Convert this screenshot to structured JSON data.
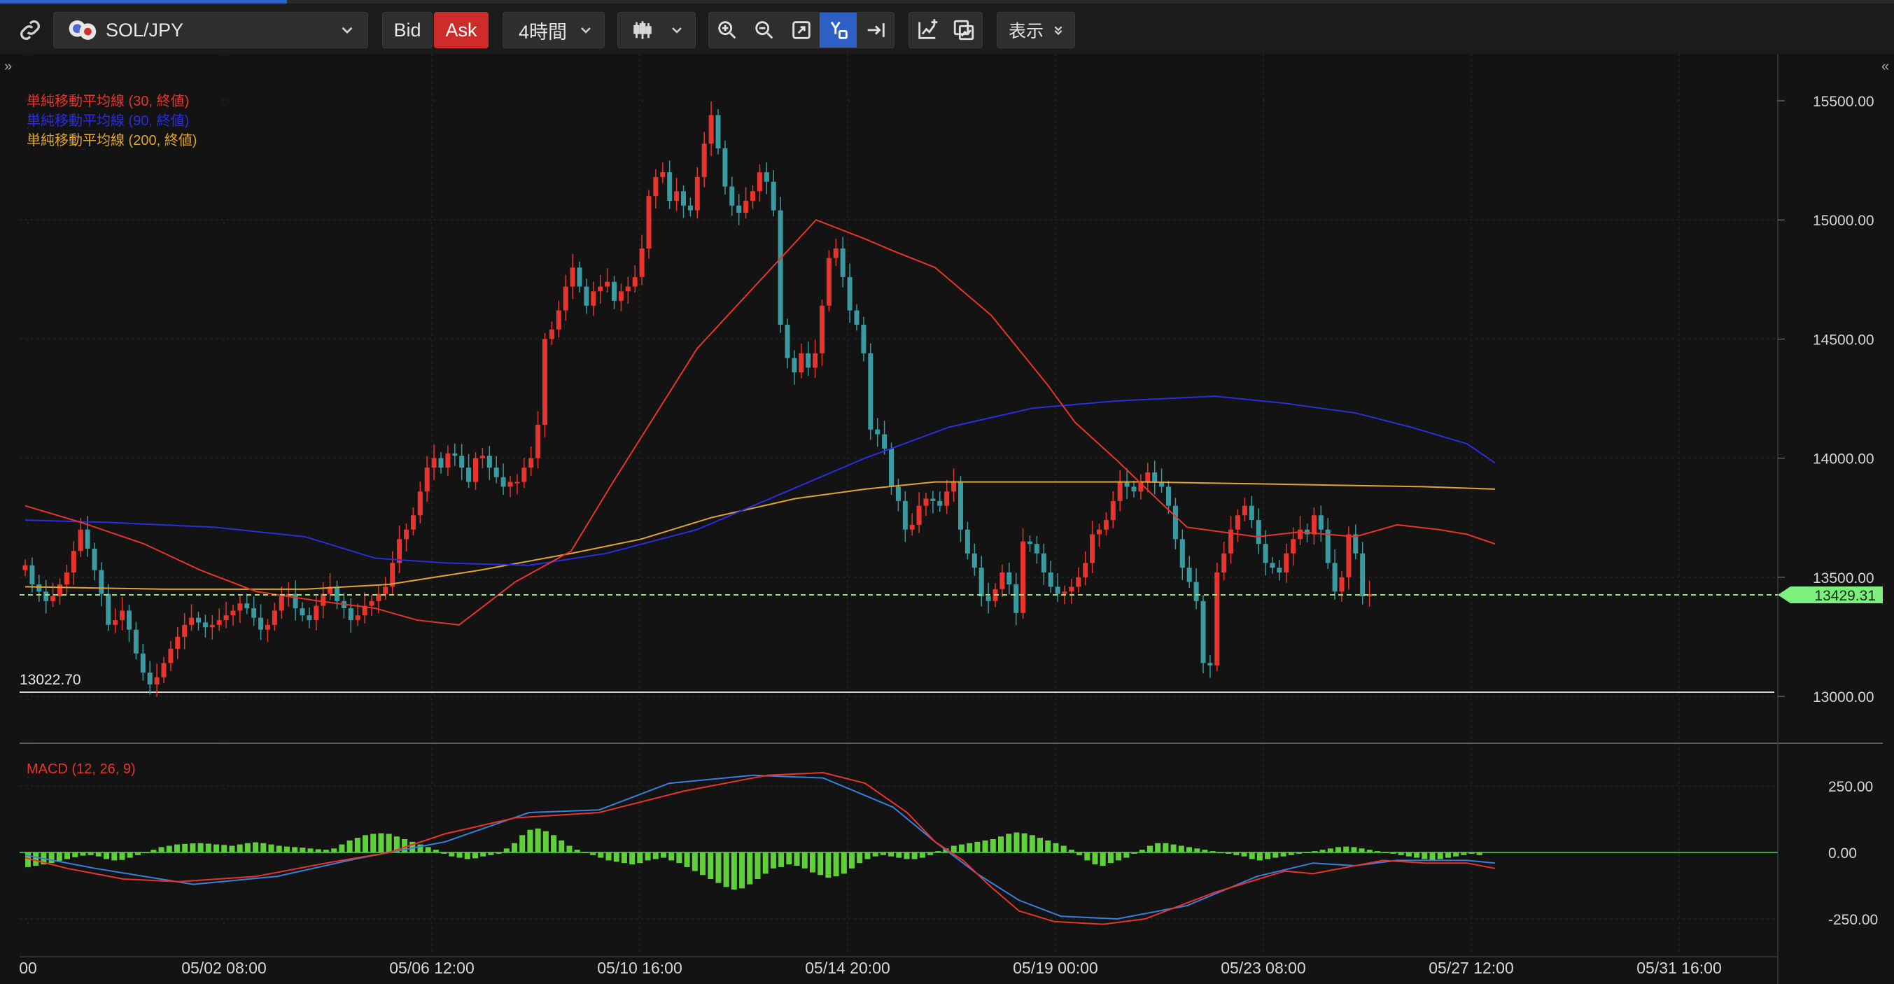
{
  "toolbar": {
    "symbol": "SOL/JPY",
    "bid_label": "Bid",
    "ask_label": "Ask",
    "timeframe": "4時間",
    "display_label": "表示"
  },
  "indicators": [
    {
      "label": "単純移動平均線 (30, 終値)",
      "color": "#e8342c"
    },
    {
      "label": "単純移動平均線 (90, 終値)",
      "color": "#2c2ce0"
    },
    {
      "label": "単純移動平均線 (200, 終値)",
      "color": "#e0a530"
    }
  ],
  "macd_label": "MACD (12, 26, 9)",
  "low_marker": "13022.70",
  "current_price": "13429.31",
  "colors": {
    "up": "#e8342c",
    "down": "#3a9aa0",
    "macd_hist": "#5fcf3a",
    "price_line": "#7cf07c"
  },
  "chart_data": {
    "type": "line",
    "price_axis": [
      {
        "v": 15500,
        "label": "15500.00"
      },
      {
        "v": 15000,
        "label": "15000.00"
      },
      {
        "v": 14500,
        "label": "14500.00"
      },
      {
        "v": 14000,
        "label": "14000.00"
      },
      {
        "v": 13500,
        "label": "13500.00"
      },
      {
        "v": 13000,
        "label": "13000.00"
      }
    ],
    "macd_axis": [
      {
        "v": 250,
        "label": "250.00"
      },
      {
        "v": 0,
        "label": "0.00"
      },
      {
        "v": -250,
        "label": "-250.00"
      }
    ],
    "x_ticks": [
      "00",
      "05/02 08:00",
      "05/06 12:00",
      "05/10 16:00",
      "05/14 20:00",
      "05/19 00:00",
      "05/23 08:00",
      "05/27 12:00",
      "05/31 16:00"
    ],
    "close": [
      13550,
      13470,
      13440,
      13400,
      13420,
      13470,
      13520,
      13610,
      13700,
      13620,
      13530,
      13430,
      13300,
      13320,
      13360,
      13280,
      13180,
      13100,
      13050,
      13080,
      13140,
      13200,
      13250,
      13300,
      13330,
      13310,
      13290,
      13300,
      13320,
      13340,
      13360,
      13390,
      13370,
      13330,
      13280,
      13300,
      13360,
      13420,
      13430,
      13370,
      13340,
      13320,
      13380,
      13430,
      13460,
      13400,
      13370,
      13320,
      13340,
      13380,
      13400,
      13430,
      13460,
      13560,
      13660,
      13700,
      13760,
      13860,
      13960,
      14000,
      13960,
      14020,
      14010,
      13960,
      13900,
      14000,
      14010,
      13960,
      13920,
      13880,
      13900,
      13900,
      13960,
      14000,
      14140,
      14500,
      14540,
      14620,
      14720,
      14800,
      14720,
      14640,
      14700,
      14720,
      14740,
      14660,
      14700,
      14720,
      14760,
      14880,
      15100,
      15180,
      15200,
      15080,
      15120,
      15060,
      15040,
      15180,
      15320,
      15440,
      15300,
      15140,
      15060,
      15030,
      15080,
      15120,
      15200,
      15160,
      15040,
      14560,
      14420,
      14360,
      14440,
      14380,
      14440,
      14640,
      14840,
      14880,
      14760,
      14620,
      14560,
      14440,
      14120,
      14100,
      14040,
      13880,
      13820,
      13700,
      13720,
      13800,
      13830,
      13820,
      13800,
      13860,
      13900,
      13700,
      13600,
      13540,
      13420,
      13400,
      13450,
      13520,
      13470,
      13350,
      13650,
      13640,
      13600,
      13520,
      13460,
      13430,
      13440,
      13460,
      13500,
      13560,
      13680,
      13700,
      13740,
      13820,
      13900,
      13880,
      13860,
      13900,
      13940,
      13900,
      13880,
      13800,
      13660,
      13540,
      13480,
      13400,
      13140,
      13130,
      13520,
      13600,
      13700,
      13760,
      13800,
      13740,
      13640,
      13560,
      13540,
      13520,
      13600,
      13660,
      13700,
      13680,
      13760,
      13700,
      13560,
      13440,
      13500,
      13680,
      13600,
      13420,
      13429
    ],
    "sma30": [
      [
        0,
        13800
      ],
      [
        80,
        13730
      ],
      [
        170,
        13640
      ],
      [
        250,
        13530
      ],
      [
        330,
        13440
      ],
      [
        420,
        13400
      ],
      [
        500,
        13370
      ],
      [
        560,
        13320
      ],
      [
        620,
        13300
      ],
      [
        700,
        13480
      ],
      [
        780,
        13610
      ],
      [
        840,
        13900
      ],
      [
        960,
        14460
      ],
      [
        1130,
        15000
      ],
      [
        1200,
        14920
      ],
      [
        1240,
        14870
      ],
      [
        1300,
        14800
      ],
      [
        1380,
        14600
      ],
      [
        1460,
        14310
      ],
      [
        1500,
        14150
      ],
      [
        1560,
        13990
      ],
      [
        1620,
        13820
      ],
      [
        1660,
        13710
      ],
      [
        1760,
        13670
      ],
      [
        1820,
        13690
      ],
      [
        1860,
        13680
      ],
      [
        1900,
        13670
      ],
      [
        1960,
        13720
      ],
      [
        2020,
        13700
      ],
      [
        2060,
        13680
      ],
      [
        2100,
        13640
      ]
    ],
    "sma90": [
      [
        0,
        13740
      ],
      [
        120,
        13730
      ],
      [
        270,
        13710
      ],
      [
        400,
        13670
      ],
      [
        500,
        13580
      ],
      [
        600,
        13560
      ],
      [
        720,
        13550
      ],
      [
        830,
        13600
      ],
      [
        960,
        13700
      ],
      [
        1080,
        13850
      ],
      [
        1200,
        14000
      ],
      [
        1320,
        14130
      ],
      [
        1440,
        14210
      ],
      [
        1560,
        14240
      ],
      [
        1700,
        14260
      ],
      [
        1800,
        14230
      ],
      [
        1900,
        14190
      ],
      [
        1980,
        14130
      ],
      [
        2060,
        14060
      ],
      [
        2100,
        13980
      ]
    ],
    "sma200": [
      [
        0,
        13460
      ],
      [
        200,
        13450
      ],
      [
        400,
        13450
      ],
      [
        520,
        13470
      ],
      [
        650,
        13530
      ],
      [
        780,
        13600
      ],
      [
        880,
        13660
      ],
      [
        980,
        13750
      ],
      [
        1100,
        13830
      ],
      [
        1200,
        13870
      ],
      [
        1300,
        13900
      ],
      [
        1450,
        13900
      ],
      [
        1600,
        13900
      ],
      [
        1800,
        13890
      ],
      [
        2000,
        13880
      ],
      [
        2100,
        13870
      ]
    ],
    "macd": [
      [
        0,
        -20
      ],
      [
        60,
        -60
      ],
      [
        140,
        -100
      ],
      [
        220,
        -110
      ],
      [
        330,
        -90
      ],
      [
        430,
        -40
      ],
      [
        520,
        0
      ],
      [
        600,
        70
      ],
      [
        700,
        130
      ],
      [
        820,
        150
      ],
      [
        940,
        230
      ],
      [
        1060,
        290
      ],
      [
        1140,
        300
      ],
      [
        1200,
        260
      ],
      [
        1260,
        150
      ],
      [
        1300,
        40
      ],
      [
        1340,
        -30
      ],
      [
        1380,
        -130
      ],
      [
        1420,
        -220
      ],
      [
        1470,
        -260
      ],
      [
        1540,
        -270
      ],
      [
        1600,
        -250
      ],
      [
        1700,
        -150
      ],
      [
        1800,
        -70
      ],
      [
        1840,
        -80
      ],
      [
        1880,
        -60
      ],
      [
        1940,
        -30
      ],
      [
        2000,
        -40
      ],
      [
        2060,
        -40
      ],
      [
        2100,
        -60
      ]
    ],
    "signal": [
      [
        0,
        -10
      ],
      [
        100,
        -60
      ],
      [
        240,
        -120
      ],
      [
        360,
        -90
      ],
      [
        480,
        -20
      ],
      [
        600,
        40
      ],
      [
        720,
        150
      ],
      [
        820,
        160
      ],
      [
        920,
        260
      ],
      [
        1040,
        290
      ],
      [
        1140,
        280
      ],
      [
        1240,
        170
      ],
      [
        1300,
        40
      ],
      [
        1360,
        -80
      ],
      [
        1420,
        -180
      ],
      [
        1480,
        -240
      ],
      [
        1560,
        -250
      ],
      [
        1660,
        -200
      ],
      [
        1760,
        -90
      ],
      [
        1840,
        -40
      ],
      [
        1900,
        -50
      ],
      [
        1960,
        -30
      ],
      [
        2060,
        -30
      ],
      [
        2100,
        -40
      ]
    ],
    "hist": [
      -55,
      -50,
      -45,
      -40,
      -32,
      -25,
      -18,
      -12,
      -10,
      -15,
      -25,
      -30,
      -28,
      -20,
      -10,
      0,
      10,
      20,
      25,
      30,
      32,
      34,
      35,
      33,
      30,
      28,
      25,
      30,
      35,
      38,
      35,
      30,
      25,
      22,
      20,
      18,
      15,
      12,
      10,
      15,
      30,
      45,
      55,
      65,
      70,
      72,
      70,
      60,
      50,
      40,
      30,
      20,
      10,
      -5,
      -15,
      -20,
      -25,
      -22,
      -15,
      -10,
      -5,
      15,
      35,
      65,
      85,
      90,
      80,
      65,
      45,
      25,
      10,
      0,
      -10,
      -20,
      -30,
      -35,
      -40,
      -45,
      -40,
      -30,
      -25,
      -20,
      -30,
      -40,
      -55,
      -70,
      -85,
      -100,
      -115,
      -130,
      -140,
      -135,
      -120,
      -100,
      -80,
      -60,
      -55,
      -45,
      -50,
      -60,
      -75,
      -85,
      -95,
      -90,
      -80,
      -60,
      -40,
      -25,
      -15,
      -10,
      -15,
      -20,
      -25,
      -25,
      -20,
      -10,
      5,
      15,
      25,
      30,
      35,
      40,
      45,
      50,
      60,
      70,
      75,
      72,
      65,
      55,
      45,
      35,
      25,
      10,
      -10,
      -30,
      -45,
      -50,
      -40,
      -30,
      -20,
      -5,
      10,
      25,
      35,
      35,
      30,
      25,
      20,
      15,
      10,
      5,
      0,
      -5,
      -10,
      -15,
      -25,
      -30,
      -25,
      -20,
      -15,
      -10,
      -5,
      0,
      5,
      10,
      15,
      20,
      22,
      20,
      15,
      10,
      5,
      0,
      -5,
      -10,
      -15,
      -20,
      -25,
      -30,
      -25,
      -20,
      -15,
      -10,
      -5,
      -10
    ]
  }
}
